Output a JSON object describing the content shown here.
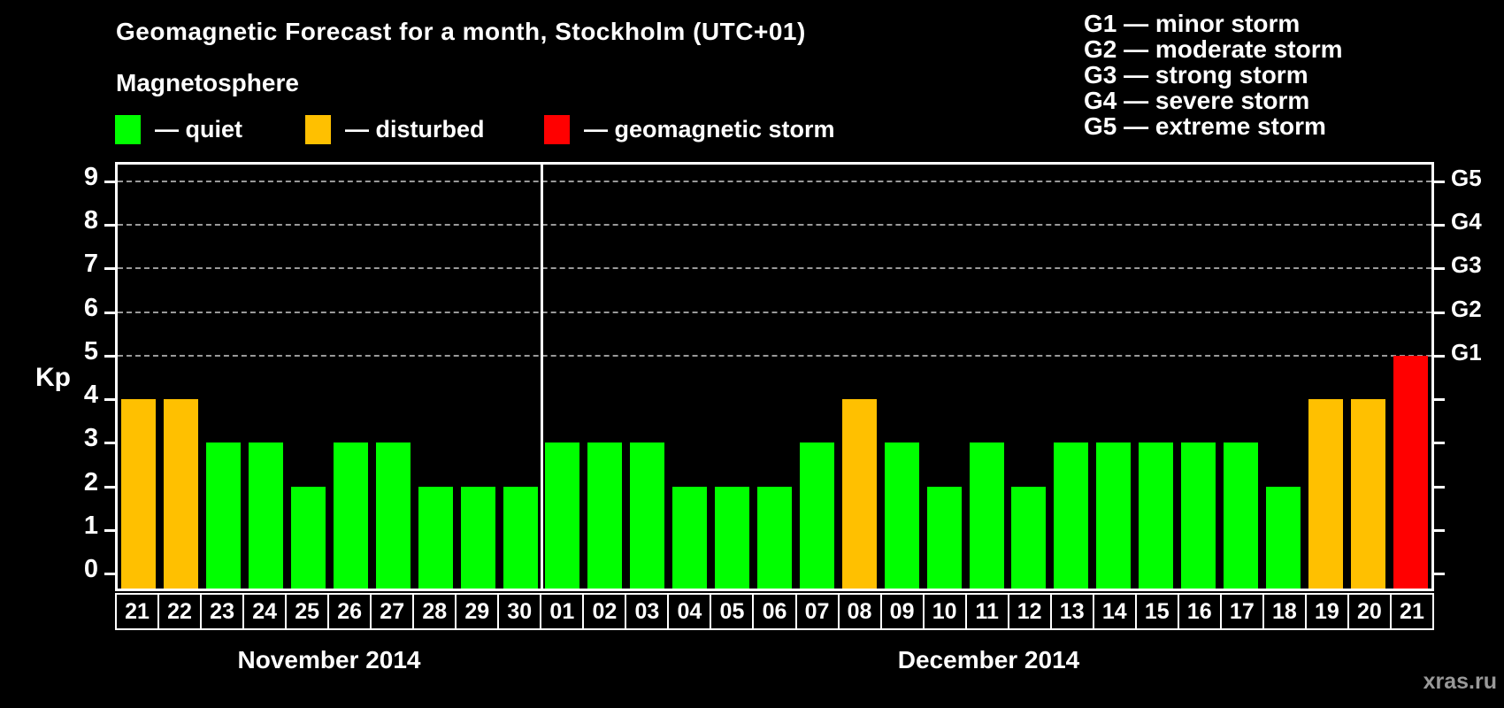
{
  "title": "Geomagnetic Forecast for a month, Stockholm (UTC+01)",
  "subtitle": "Magnetosphere",
  "legend": {
    "items": [
      {
        "status": "quiet",
        "label": "— quiet",
        "color": "#00ff00"
      },
      {
        "status": "disturbed",
        "label": "— disturbed",
        "color": "#ffc000"
      },
      {
        "status": "storm",
        "label": "— geomagnetic storm",
        "color": "#ff0000"
      }
    ]
  },
  "storm_legend": [
    "G1 — minor storm",
    "G2 — moderate storm",
    "G3 — strong storm",
    "G4 — severe storm",
    "G5 — extreme storm"
  ],
  "watermark": "xras.ru",
  "chart_data": {
    "type": "bar",
    "title": "Geomagnetic Forecast for a month, Stockholm (UTC+01)",
    "ylabel": "Kp",
    "ylim": [
      0,
      9
    ],
    "yticks": [
      0,
      1,
      2,
      3,
      4,
      5,
      6,
      7,
      8,
      9
    ],
    "grid_levels": [
      5,
      6,
      7,
      8,
      9
    ],
    "grid_on": true,
    "legend_position": "top-left",
    "right_axis": [
      {
        "level": 9,
        "label": "G5"
      },
      {
        "level": 8,
        "label": "G4"
      },
      {
        "level": 7,
        "label": "G3"
      },
      {
        "level": 6,
        "label": "G2"
      },
      {
        "level": 5,
        "label": "G1"
      }
    ],
    "status_colors": {
      "quiet": "#00ff00",
      "disturbed": "#ffc000",
      "storm": "#ff0000"
    },
    "months": [
      {
        "label": "November 2014",
        "days": [
          {
            "day": "21",
            "kp": 4,
            "status": "disturbed"
          },
          {
            "day": "22",
            "kp": 4,
            "status": "disturbed"
          },
          {
            "day": "23",
            "kp": 3,
            "status": "quiet"
          },
          {
            "day": "24",
            "kp": 3,
            "status": "quiet"
          },
          {
            "day": "25",
            "kp": 2,
            "status": "quiet"
          },
          {
            "day": "26",
            "kp": 3,
            "status": "quiet"
          },
          {
            "day": "27",
            "kp": 3,
            "status": "quiet"
          },
          {
            "day": "28",
            "kp": 2,
            "status": "quiet"
          },
          {
            "day": "29",
            "kp": 2,
            "status": "quiet"
          },
          {
            "day": "30",
            "kp": 2,
            "status": "quiet"
          }
        ]
      },
      {
        "label": "December 2014",
        "days": [
          {
            "day": "01",
            "kp": 3,
            "status": "quiet"
          },
          {
            "day": "02",
            "kp": 3,
            "status": "quiet"
          },
          {
            "day": "03",
            "kp": 3,
            "status": "quiet"
          },
          {
            "day": "04",
            "kp": 2,
            "status": "quiet"
          },
          {
            "day": "05",
            "kp": 2,
            "status": "quiet"
          },
          {
            "day": "06",
            "kp": 2,
            "status": "quiet"
          },
          {
            "day": "07",
            "kp": 3,
            "status": "quiet"
          },
          {
            "day": "08",
            "kp": 4,
            "status": "disturbed"
          },
          {
            "day": "09",
            "kp": 3,
            "status": "quiet"
          },
          {
            "day": "10",
            "kp": 2,
            "status": "quiet"
          },
          {
            "day": "11",
            "kp": 3,
            "status": "quiet"
          },
          {
            "day": "12",
            "kp": 2,
            "status": "quiet"
          },
          {
            "day": "13",
            "kp": 3,
            "status": "quiet"
          },
          {
            "day": "14",
            "kp": 3,
            "status": "quiet"
          },
          {
            "day": "15",
            "kp": 3,
            "status": "quiet"
          },
          {
            "day": "16",
            "kp": 3,
            "status": "quiet"
          },
          {
            "day": "17",
            "kp": 3,
            "status": "quiet"
          },
          {
            "day": "18",
            "kp": 2,
            "status": "quiet"
          },
          {
            "day": "19",
            "kp": 4,
            "status": "disturbed"
          },
          {
            "day": "20",
            "kp": 4,
            "status": "disturbed"
          },
          {
            "day": "21",
            "kp": 5,
            "status": "storm"
          }
        ]
      }
    ]
  }
}
